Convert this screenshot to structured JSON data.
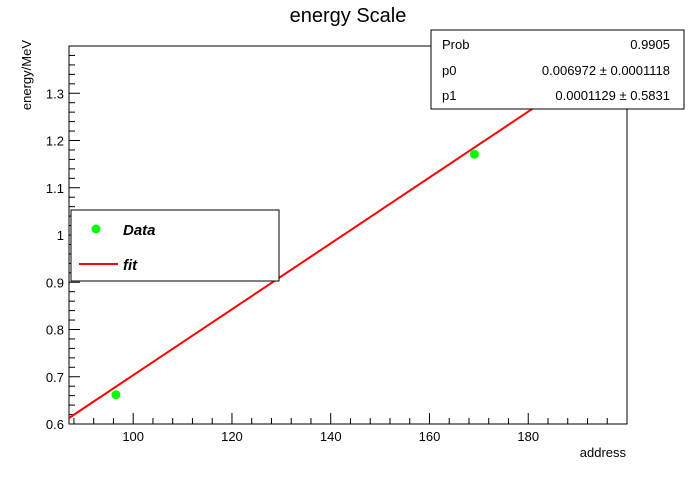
{
  "chart_data": {
    "type": "scatter",
    "title": "energy Scale",
    "xlabel": "address",
    "ylabel": "energy/MeV",
    "xlim": [
      87,
      200
    ],
    "ylim": [
      0.6,
      1.4
    ],
    "x_ticks": [
      100,
      120,
      140,
      160,
      180
    ],
    "y_ticks": [
      0.6,
      0.7,
      0.8,
      0.9,
      1.0,
      1.1,
      1.2,
      1.3
    ],
    "y_tick_labels": [
      "0.6",
      "0.7",
      "0.8",
      "0.9",
      "1",
      "1.1",
      "1.2",
      "1.3"
    ],
    "series": [
      {
        "name": "Data",
        "kind": "points",
        "color": "#00ff00",
        "points": [
          {
            "x": 96.5,
            "y": 0.662
          },
          {
            "x": 169.1,
            "y": 1.171
          }
        ]
      },
      {
        "name": "fit",
        "kind": "line",
        "color": "#ff0000",
        "points": [
          {
            "x": 87,
            "y": 0.6127
          },
          {
            "x": 200,
            "y": 1.4006
          }
        ]
      }
    ],
    "legend": {
      "position": "left",
      "entries": [
        "Data",
        "fit"
      ]
    },
    "stats_box": {
      "position": "top-right",
      "rows": [
        {
          "label": "Prob",
          "value": "0.9905"
        },
        {
          "label": "p0",
          "value": "0.006972 ± 0.0001118"
        },
        {
          "label": "p1",
          "value": "0.0001129 ± 0.5831"
        }
      ]
    },
    "grid": false
  }
}
